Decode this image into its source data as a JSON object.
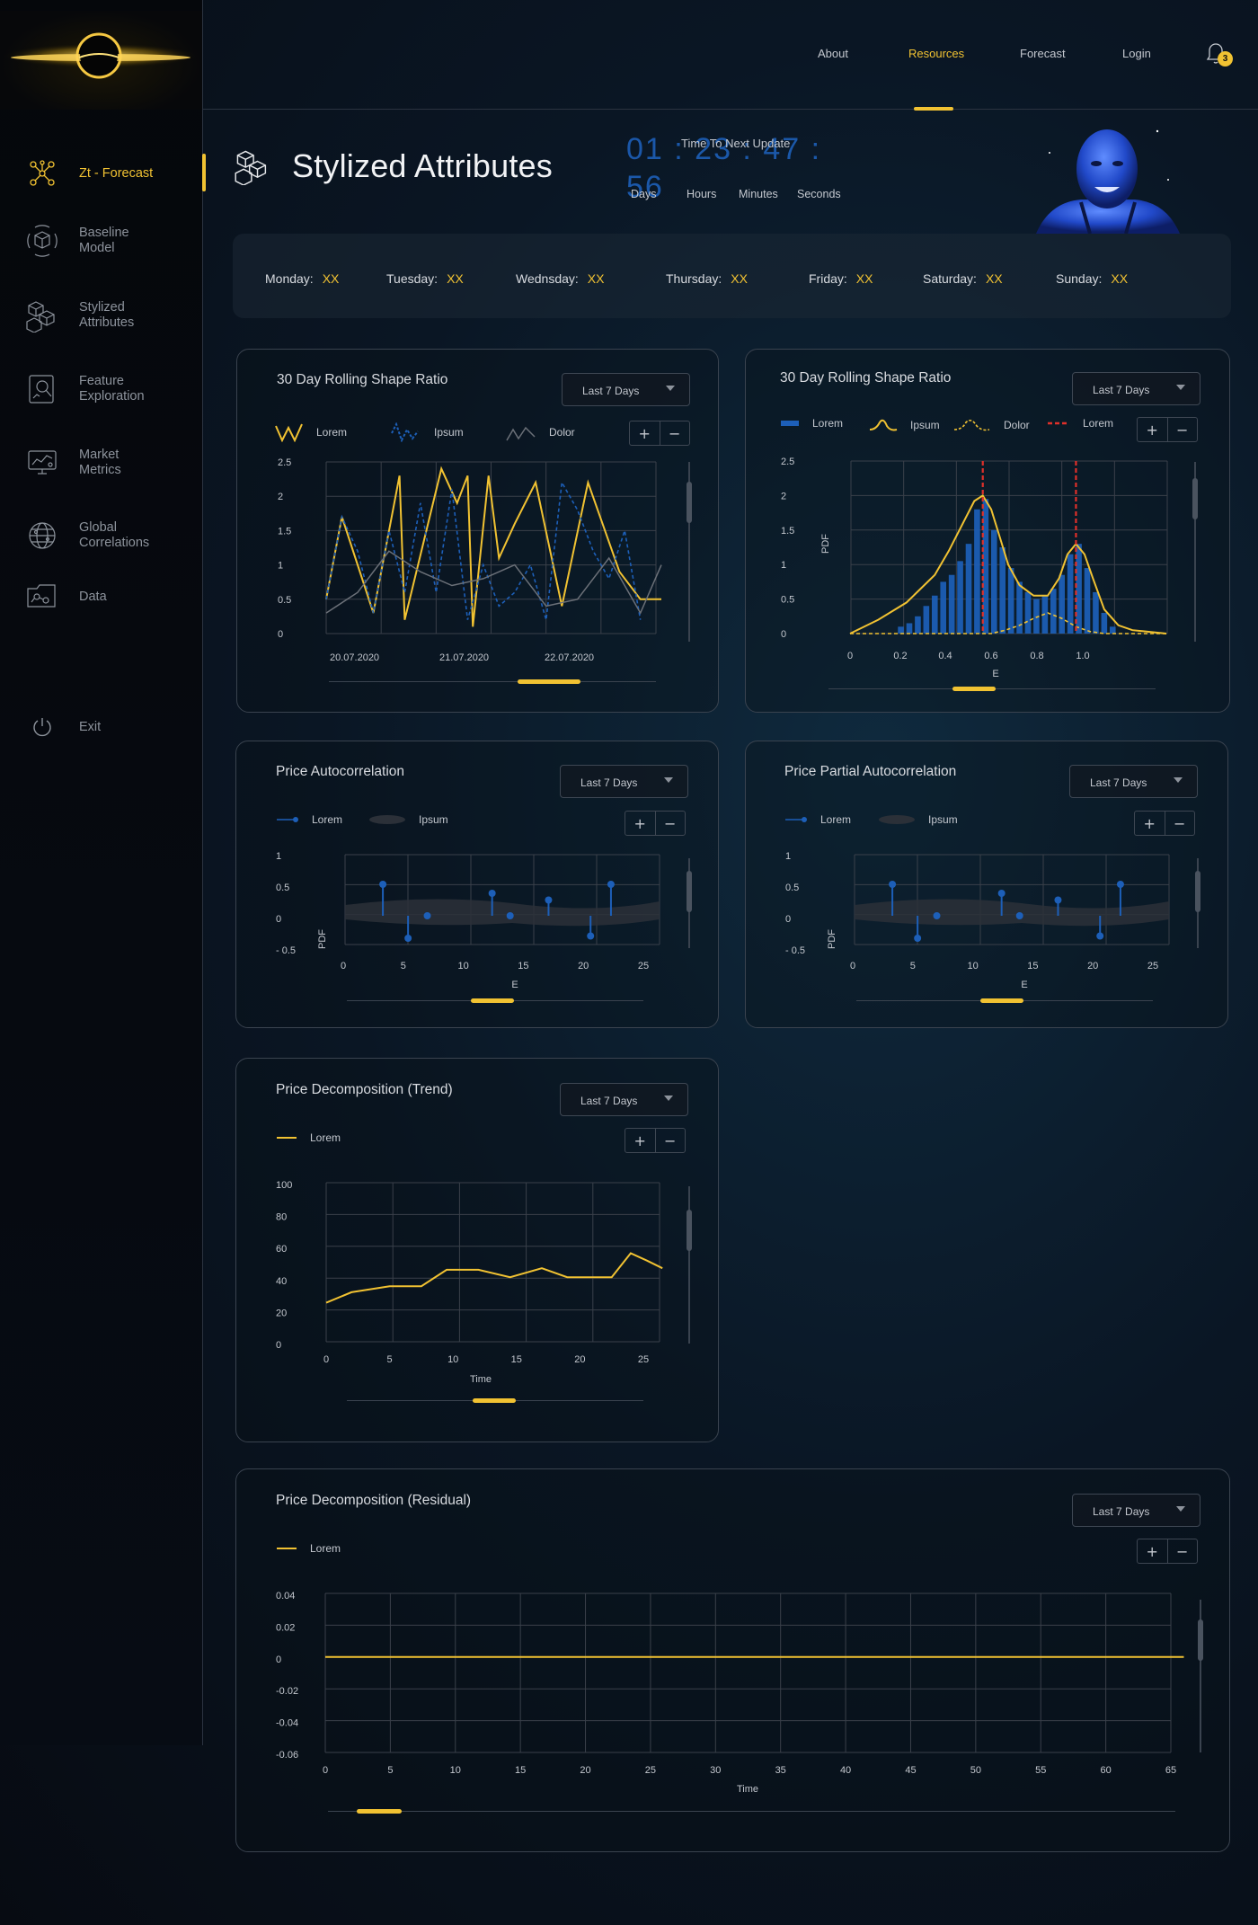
{
  "sidebar": {
    "items": [
      {
        "label": "Zt - Forecast",
        "icon": "network-nodes-icon",
        "active": true
      },
      {
        "label": "Baseline\nModel",
        "icon": "cube-scan-icon",
        "active": false
      },
      {
        "label": "Stylized\nAttributes",
        "icon": "cubes-icon",
        "active": false
      },
      {
        "label": "Feature\nExploration",
        "icon": "search-chart-icon",
        "active": false
      },
      {
        "label": "Market\nMetrics",
        "icon": "monitor-chart-icon",
        "active": false
      },
      {
        "label": "Global\nCorrelations",
        "icon": "globe-icon",
        "active": false
      },
      {
        "label": "Data",
        "icon": "data-folder-icon",
        "active": false
      }
    ],
    "exit": {
      "label": "Exit",
      "icon": "power-icon"
    }
  },
  "topnav": {
    "items": [
      {
        "label": "About",
        "active": false
      },
      {
        "label": "Resources",
        "active": true
      },
      {
        "label": "Forecast",
        "active": false
      },
      {
        "label": "Login",
        "active": false
      }
    ],
    "notifications": "3"
  },
  "header": {
    "title": "Stylized Attributes",
    "countdown": {
      "label": "Time To Next Update",
      "value": "01 : 23 : 47 : 56",
      "units": [
        "Days",
        "Hours",
        "Minutes",
        "Seconds"
      ]
    }
  },
  "days": [
    {
      "label": "Monday:",
      "value": "XX"
    },
    {
      "label": "Tuesday:",
      "value": "XX"
    },
    {
      "label": "Wednsday:",
      "value": "XX"
    },
    {
      "label": "Thursday:",
      "value": "XX"
    },
    {
      "label": "Friday:",
      "value": "XX"
    },
    {
      "label": "Saturday:",
      "value": "XX"
    },
    {
      "label": "Sunday:",
      "value": "XX"
    }
  ],
  "colors": {
    "accent": "#f1c232",
    "blue": "#1d5fb8",
    "red": "#e0302a"
  },
  "range_label": "Last 7 Days",
  "chart_data": [
    {
      "type": "line",
      "title": "30 Day Rolling Shape Ratio",
      "legend": [
        "Lorem",
        "Ipsum",
        "Dolor"
      ],
      "yticks": [
        "2.5",
        "2",
        "1.5",
        "1",
        "0.5",
        "0"
      ],
      "xticks": [
        "20.07.2020",
        "21.07.2020",
        "22.07.2020"
      ],
      "ylim": [
        0,
        2.5
      ],
      "series": [
        {
          "name": "Lorem",
          "x": [
            0,
            0.3,
            0.9,
            1.4,
            1.5,
            2.2,
            2.5,
            2.7,
            2.8,
            3.1,
            3.3,
            3.6,
            4.0,
            4.5,
            5.0,
            5.6,
            6.0,
            6.4
          ],
          "y": [
            0.5,
            1.7,
            0.3,
            2.3,
            0.2,
            2.4,
            1.9,
            2.3,
            0.1,
            2.3,
            1.1,
            1.6,
            2.2,
            0.4,
            2.2,
            0.9,
            0.5,
            0.5
          ]
        },
        {
          "name": "Ipsum",
          "x": [
            0,
            0.3,
            0.6,
            0.9,
            1.2,
            1.5,
            1.8,
            2.1,
            2.4,
            2.7,
            3.0,
            3.3,
            3.6,
            3.9,
            4.2,
            4.5,
            4.8,
            5.1,
            5.4,
            5.7,
            6.0
          ],
          "y": [
            0.5,
            1.7,
            1.2,
            0.3,
            1.5,
            0.6,
            1.9,
            0.6,
            2.1,
            0.2,
            1.0,
            0.4,
            0.6,
            1.0,
            0.2,
            2.2,
            1.8,
            1.2,
            0.8,
            1.5,
            0.2
          ]
        },
        {
          "name": "Dolor",
          "x": [
            0,
            0.6,
            1.2,
            1.8,
            2.4,
            3.0,
            3.6,
            4.2,
            4.8,
            5.4,
            6.0,
            6.4
          ],
          "y": [
            0.3,
            0.6,
            1.2,
            0.9,
            0.7,
            0.8,
            1.0,
            0.4,
            0.5,
            1.1,
            0.3,
            1.0
          ]
        }
      ]
    },
    {
      "type": "bar",
      "title": "30 Day Rolling Shape Ratio",
      "legend": [
        "Lorem",
        "Ipsum",
        "Dolor",
        "Lorem"
      ],
      "ylabel": "PDF",
      "xlabel": "E",
      "yticks": [
        "2.5",
        "2",
        "1.5",
        "1",
        "0.5",
        "0"
      ],
      "xticks": [
        "0",
        "0.2",
        "0.4",
        "0.6",
        "0.8",
        "1.0"
      ],
      "ylim": [
        0,
        2.5
      ],
      "xlim": [
        0,
        1.12
      ],
      "bars_x": [
        0.18,
        0.21,
        0.24,
        0.27,
        0.3,
        0.33,
        0.36,
        0.39,
        0.42,
        0.45,
        0.48,
        0.51,
        0.54,
        0.57,
        0.6,
        0.63,
        0.66,
        0.69,
        0.72,
        0.75,
        0.78,
        0.81,
        0.84,
        0.87,
        0.9,
        0.93
      ],
      "bars_y": [
        0.1,
        0.15,
        0.25,
        0.4,
        0.55,
        0.75,
        0.85,
        1.05,
        1.3,
        1.8,
        1.95,
        1.5,
        1.25,
        0.95,
        0.75,
        0.6,
        0.5,
        0.55,
        0.65,
        0.85,
        1.15,
        1.3,
        0.95,
        0.6,
        0.3,
        0.1
      ],
      "kde_x": [
        0,
        0.1,
        0.2,
        0.3,
        0.35,
        0.4,
        0.44,
        0.47,
        0.5,
        0.53,
        0.56,
        0.6,
        0.65,
        0.7,
        0.74,
        0.77,
        0.8,
        0.83,
        0.86,
        0.9,
        0.95,
        1.0,
        1.12
      ],
      "kde_y": [
        0,
        0.2,
        0.45,
        0.85,
        1.2,
        1.6,
        1.92,
        2.0,
        1.8,
        1.4,
        1.0,
        0.7,
        0.55,
        0.55,
        0.8,
        1.15,
        1.3,
        1.15,
        0.8,
        0.35,
        0.12,
        0.05,
        0
      ],
      "dolor_x": [
        0,
        0.3,
        0.5,
        0.55,
        0.6,
        0.65,
        0.7,
        0.75,
        0.8,
        0.85,
        0.9,
        0.95,
        1.0,
        1.12
      ],
      "dolor_y": [
        0,
        0,
        0,
        0.05,
        0.12,
        0.22,
        0.3,
        0.22,
        0.1,
        0.03,
        0,
        0,
        0,
        0
      ],
      "vlines": [
        0.47,
        0.8
      ]
    },
    {
      "type": "stem",
      "title": "Price Autocorrelation",
      "legend": [
        "Lorem",
        "Ipsum"
      ],
      "ylabel": "PDF",
      "xlabel": "E",
      "yticks": [
        "1",
        "0.5",
        "0",
        "- 0.5"
      ],
      "xticks": [
        "0",
        "5",
        "10",
        "15",
        "20",
        "25"
      ],
      "ylim": [
        -0.5,
        1
      ],
      "xlim": [
        0,
        26
      ],
      "x": [
        3.3,
        5.4,
        7.0,
        12.4,
        13.9,
        17.1,
        20.6,
        22.3
      ],
      "y": [
        0.7,
        -0.5,
        0.0,
        0.5,
        0.0,
        0.35,
        -0.45,
        0.7
      ]
    },
    {
      "type": "stem",
      "title": "Price Partial Autocorrelation",
      "legend": [
        "Lorem",
        "Ipsum"
      ],
      "ylabel": "PDF",
      "xlabel": "E",
      "yticks": [
        "1",
        "0.5",
        "0",
        "- 0.5"
      ],
      "xticks": [
        "0",
        "5",
        "10",
        "15",
        "20",
        "25"
      ],
      "ylim": [
        -0.5,
        1
      ],
      "xlim": [
        0,
        26
      ],
      "x": [
        3.3,
        5.4,
        7.0,
        12.4,
        13.9,
        17.1,
        20.6,
        22.3
      ],
      "y": [
        0.7,
        -0.5,
        0.0,
        0.5,
        0.0,
        0.35,
        -0.45,
        0.7
      ]
    },
    {
      "type": "line",
      "title": "Price Decomposition (Trend)",
      "legend": [
        "Lorem"
      ],
      "xlabel": "Time",
      "yticks": [
        "100",
        "80",
        "60",
        "40",
        "20",
        "0"
      ],
      "xticks": [
        "0",
        "5",
        "10",
        "15",
        "20",
        "25"
      ],
      "ylim": [
        0,
        100
      ],
      "xlim": [
        0,
        26
      ],
      "x": [
        0,
        2,
        5,
        7.5,
        9.5,
        12,
        14.5,
        17,
        19,
        22.5,
        24,
        25.3,
        26.5
      ],
      "y": [
        20,
        27,
        31,
        31,
        42,
        42,
        37,
        43,
        37,
        37,
        53,
        48,
        43
      ]
    },
    {
      "type": "line",
      "title": "Price Decomposition (Residual)",
      "legend": [
        "Lorem"
      ],
      "xlabel": "Time",
      "yticks": [
        "0.04",
        "0.02",
        "0",
        "-0.02",
        "-0.04",
        "-0.06"
      ],
      "xticks": [
        "0",
        "5",
        "10",
        "15",
        "20",
        "25",
        "30",
        "35",
        "40",
        "45",
        "50",
        "55",
        "60",
        "65"
      ],
      "ylim": [
        -0.06,
        0.04
      ],
      "xlim": [
        0,
        66
      ],
      "x": [
        0,
        66
      ],
      "y": [
        0,
        0
      ]
    }
  ]
}
